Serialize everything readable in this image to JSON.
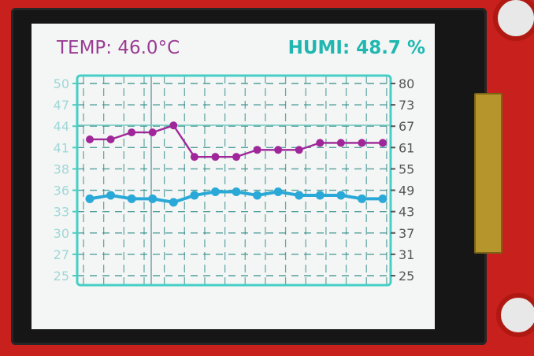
{
  "display": {
    "temp_label": "TEMP: ",
    "temp_value": "46.0°C",
    "humi_label": "HUMI: ",
    "humi_value": "48.7 %"
  },
  "colors": {
    "temp_series": "#a0279a",
    "humi_series": "#2aa9d8",
    "grid": "#2a8a86",
    "frame": "#46cfc6",
    "screen_bg": "#f4f6f5"
  },
  "chart_data": {
    "type": "line",
    "grid": true,
    "x": [
      0,
      1,
      2,
      3,
      4,
      5,
      6,
      7,
      8,
      9,
      10,
      11,
      12,
      13,
      14
    ],
    "y_left": {
      "ticks": [
        "50",
        "47",
        "44",
        "41",
        "38",
        "36",
        "33",
        "30",
        "27",
        "25"
      ],
      "range": [
        25,
        50
      ]
    },
    "y_right": {
      "ticks": [
        "80",
        "73",
        "67",
        "61",
        "55",
        "49",
        "43",
        "37",
        "31",
        "25"
      ],
      "range": [
        25,
        80
      ]
    },
    "series": [
      {
        "axis": "right",
        "values": [
          64,
          64,
          66,
          66,
          68,
          59,
          59,
          59,
          61,
          61,
          61,
          63,
          63,
          63,
          63
        ]
      },
      {
        "axis": "right",
        "values": [
          47,
          48,
          47,
          47,
          46,
          48,
          49,
          49,
          48,
          49,
          48,
          48,
          48,
          47,
          47
        ]
      }
    ]
  }
}
